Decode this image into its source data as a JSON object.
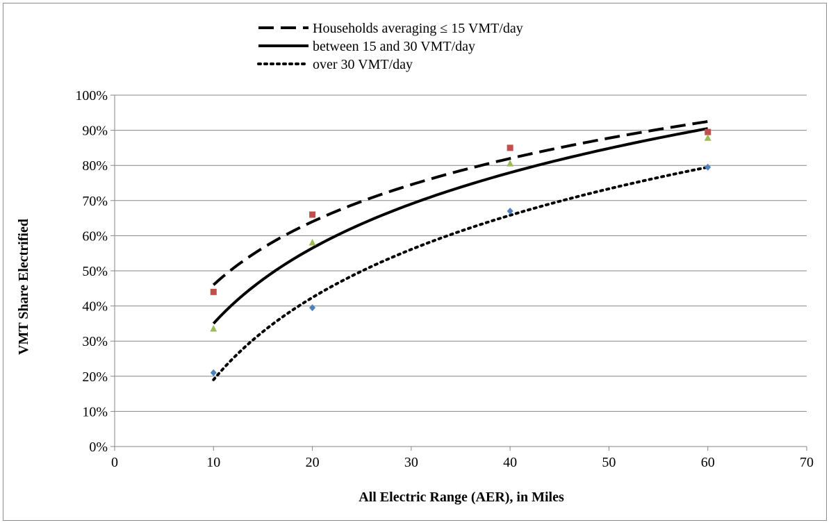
{
  "chart_data": {
    "type": "scatter",
    "xlabel": "All Electric Range (AER), in Miles",
    "ylabel": "VMT Share Electrified",
    "xlim": [
      0,
      70
    ],
    "ylim": [
      0,
      1
    ],
    "x_ticks": [
      "0",
      "10",
      "20",
      "30",
      "40",
      "50",
      "60",
      "70"
    ],
    "y_ticks": [
      "0%",
      "10%",
      "20%",
      "30%",
      "40%",
      "50%",
      "60%",
      "70%",
      "80%",
      "90%",
      "100%"
    ],
    "grid": "horizontal",
    "legend_position": "top",
    "series": [
      {
        "name": "Households averaging ≤ 15 VMT/day",
        "marker": "square",
        "marker_color": "#c0504d",
        "line_style": "dashed",
        "x": [
          10,
          20,
          40,
          60
        ],
        "y": [
          0.44,
          0.66,
          0.85,
          0.895
        ],
        "trend": {
          "type": "log",
          "x_range": [
            10,
            60
          ],
          "y_start": 0.46,
          "y_end": 0.925
        }
      },
      {
        "name": "between 15 and 30 VMT/day",
        "marker": "triangle",
        "marker_color": "#9bbb59",
        "line_style": "solid",
        "x": [
          10,
          20,
          40,
          60
        ],
        "y": [
          0.335,
          0.58,
          0.805,
          0.878
        ],
        "trend": {
          "type": "log",
          "x_range": [
            10,
            60
          ],
          "y_start": 0.35,
          "y_end": 0.905
        }
      },
      {
        "name": "over 30 VMT/day",
        "marker": "diamond",
        "marker_color": "#4f81bd",
        "line_style": "dotted",
        "x": [
          10,
          20,
          40,
          60
        ],
        "y": [
          0.21,
          0.395,
          0.67,
          0.795
        ],
        "trend": {
          "type": "log",
          "x_range": [
            10,
            60
          ],
          "y_start": 0.19,
          "y_end": 0.795
        }
      }
    ]
  }
}
